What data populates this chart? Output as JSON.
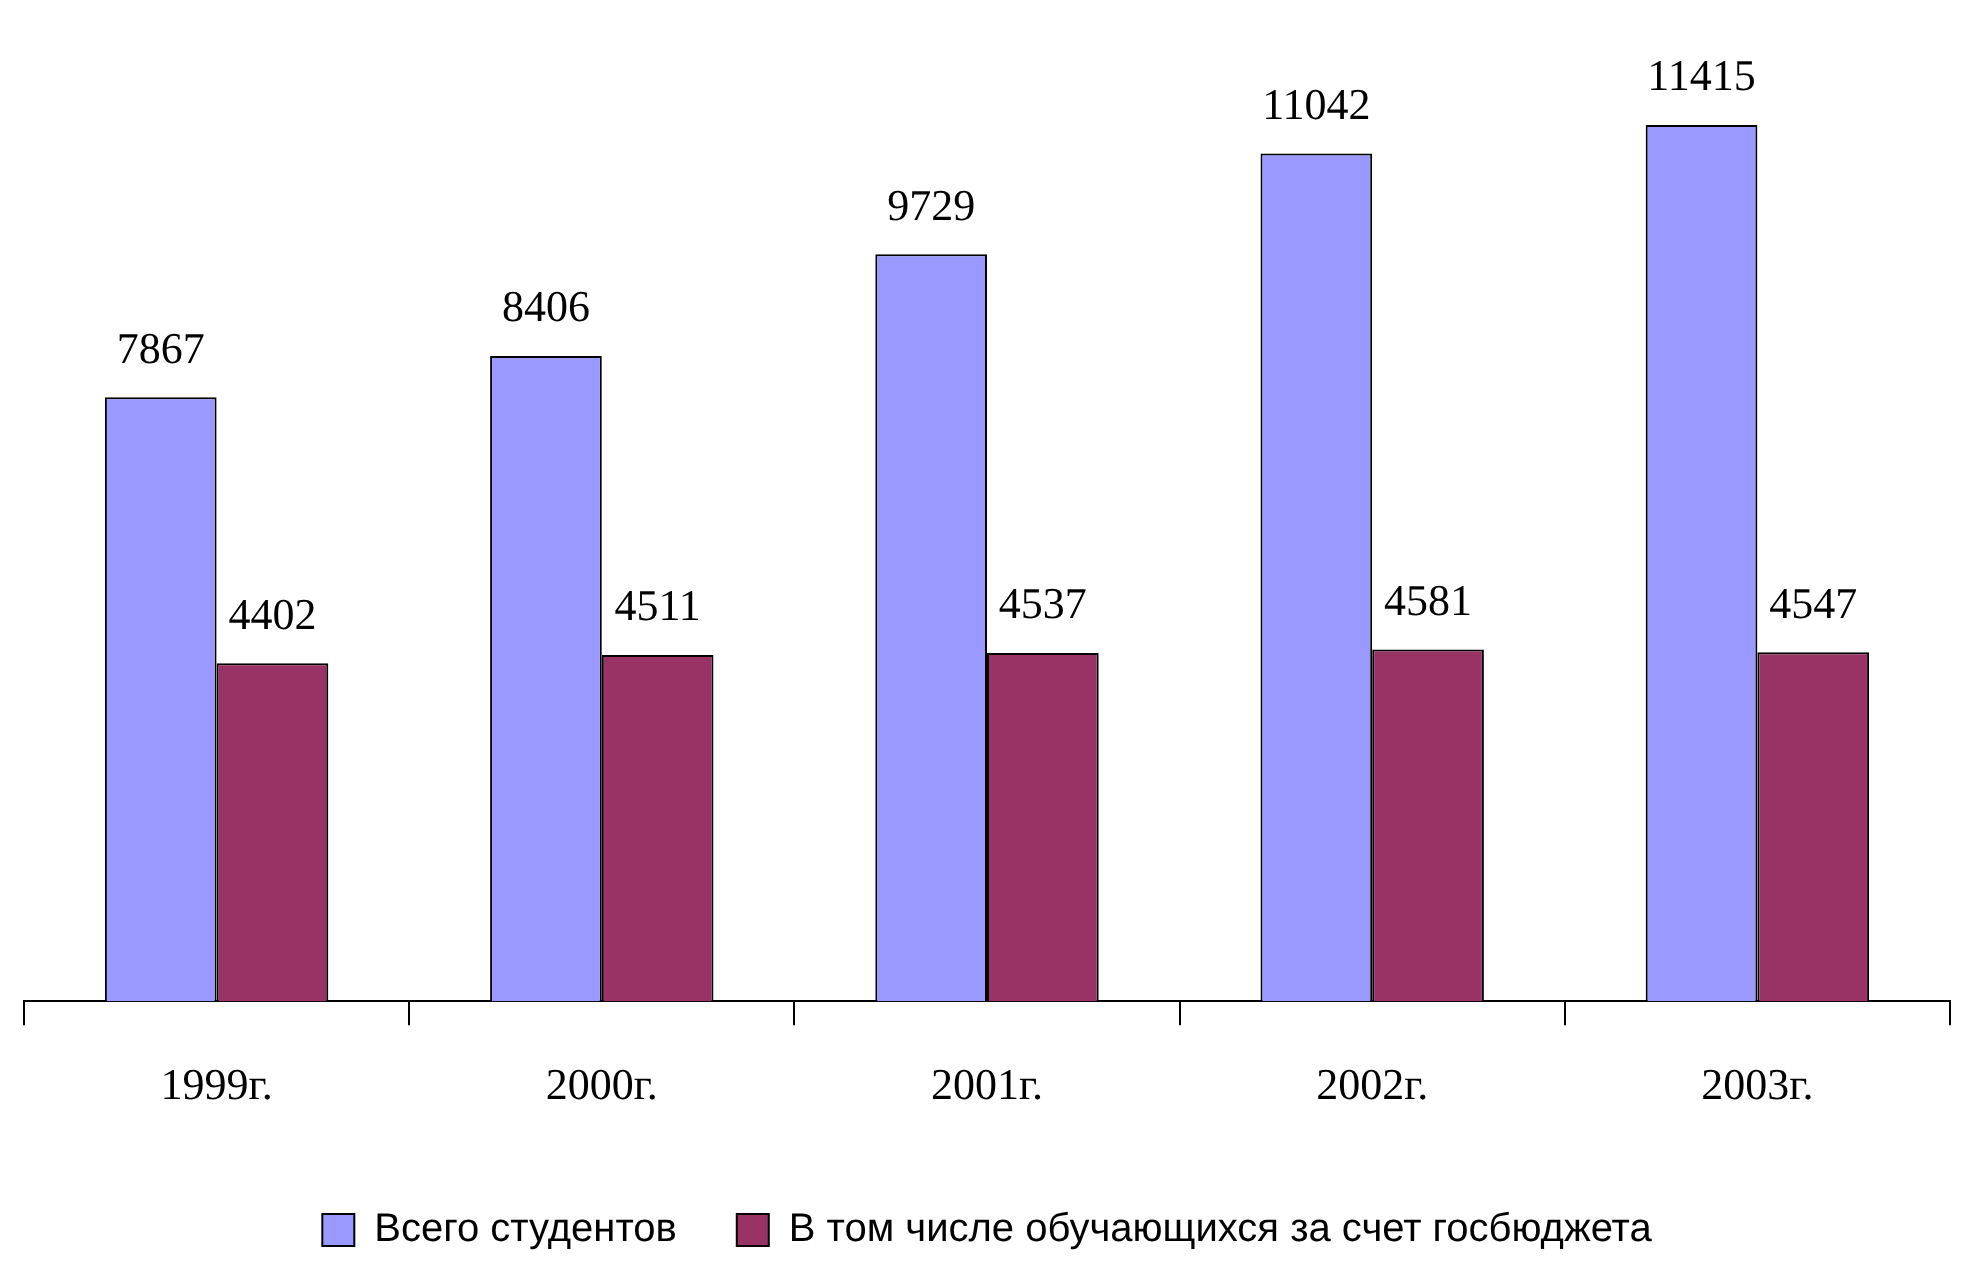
{
  "chart_data": {
    "type": "bar",
    "categories": [
      "1999г.",
      "2000г.",
      "2001г.",
      "2002г.",
      "2003г."
    ],
    "series": [
      {
        "name": "Всего студентов",
        "color": "#9999ff",
        "values": [
          7867,
          8406,
          9729,
          11042,
          11415
        ]
      },
      {
        "name": "В том числе обучающихся за счет госбюджета",
        "color": "#993366",
        "values": [
          4402,
          4511,
          4537,
          4581,
          4547
        ]
      }
    ],
    "data_labels": true,
    "legend": "bottom",
    "grid": false,
    "tick_labels": "x"
  }
}
